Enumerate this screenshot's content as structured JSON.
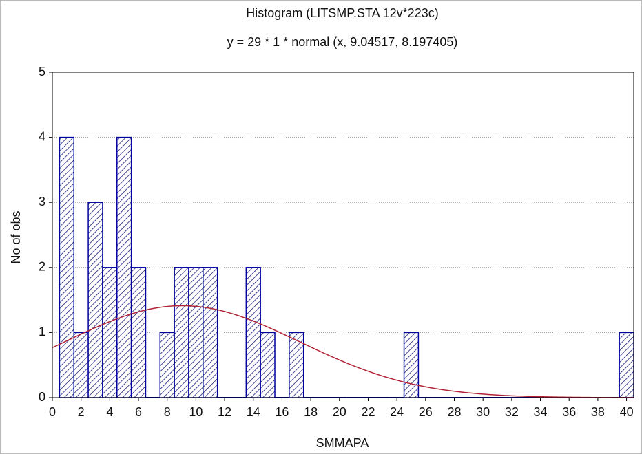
{
  "chart_data": {
    "type": "histogram",
    "title": "Histogram (LITSMP.STA 12v*223c)",
    "subtitle": "y = 29 * 1 * normal (x, 9.04517, 8.197405)",
    "x_label": "SMMAPA",
    "y_label": "No of obs",
    "bins": [
      0.5,
      1.5,
      2.5,
      3.5,
      4.5,
      5.5,
      6.5,
      7.5,
      8.5,
      9.5,
      10.5,
      11.5,
      12.5,
      13.5,
      14.5,
      15.5,
      16.5,
      17.5,
      18.5,
      19.5,
      20.5,
      21.5,
      22.5,
      23.5,
      24.5,
      25.5,
      26.5,
      27.5,
      28.5,
      29.5,
      30.5,
      31.5,
      32.5,
      33.5,
      34.5,
      35.5,
      36.5,
      37.5,
      38.5,
      39.5,
      40.5
    ],
    "values": [
      4,
      1,
      3,
      2,
      4,
      2,
      0,
      1,
      2,
      2,
      2,
      0,
      0,
      2,
      1,
      0,
      1,
      0,
      0,
      0,
      0,
      0,
      0,
      0,
      1,
      0,
      0,
      0,
      0,
      0,
      0,
      0,
      0,
      0,
      0,
      0,
      0,
      0,
      0,
      1
    ],
    "color": "#0000a0",
    "normal_fit": {
      "n": 29,
      "width": 1,
      "mean": 9.04517,
      "sd": 8.197405,
      "color": "#b22234"
    },
    "xlim": [
      0,
      40.5
    ],
    "ylim": [
      0,
      5
    ],
    "xticks": [
      0,
      2,
      4,
      6,
      8,
      10,
      12,
      14,
      16,
      18,
      20,
      22,
      24,
      26,
      28,
      30,
      32,
      34,
      36,
      38,
      40
    ],
    "yticks": [
      0,
      1,
      2,
      3,
      4,
      5
    ],
    "grid": true
  }
}
